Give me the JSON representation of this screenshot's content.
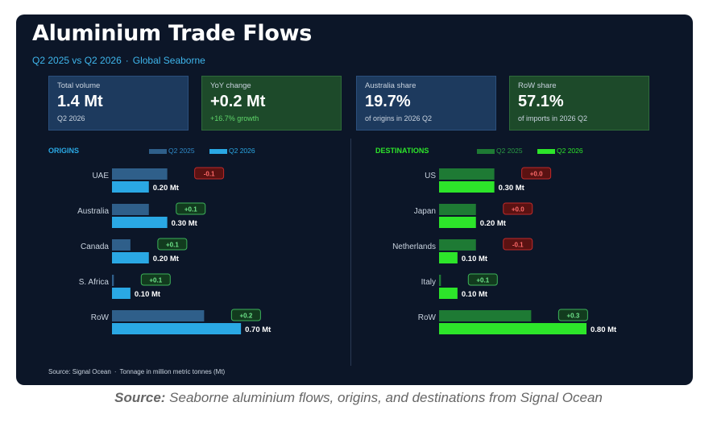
{
  "header": {
    "title": "Aluminium Trade Flows",
    "subtitle_period": "Q2 2025 vs Q2 2026",
    "subtitle_sep": "·",
    "subtitle_scope": "Global Seaborne"
  },
  "kpis": [
    {
      "label": "Total volume",
      "value": "1.4 Mt",
      "note": "Q2 2026",
      "style": "blue"
    },
    {
      "label": "YoY change",
      "value": "+0.2 Mt",
      "note": "+16.7% growth",
      "style": "green"
    },
    {
      "label": "Australia share",
      "value": "19.7%",
      "note": "of origins in 2026 Q2",
      "style": "blue"
    },
    {
      "label": "RoW share",
      "value": "57.1%",
      "note": "of imports in 2026 Q2",
      "style": "green"
    }
  ],
  "footer": {
    "source": "Source: Signal Ocean",
    "sep": "·",
    "unit_note": "Tonnage in million metric tonnes (Mt)"
  },
  "caption": {
    "prefix": "Source:",
    "text": "Seaborne aluminium flows, origins, and destinations from Signal Ocean"
  },
  "colors": {
    "origin_2025": "#2f5f8a",
    "origin_2026": "#2aa8e4",
    "dest_2025": "#1e7a34",
    "dest_2026": "#2de52a",
    "pos_badge_bg": "#123b1e",
    "pos_badge_border": "#3db35a",
    "pos_badge_text": "#6ee58a",
    "neg_badge_bg": "#5a1212",
    "neg_badge_border": "#c02a2a",
    "neg_badge_text": "#ff6a6a",
    "origin_title": "#2aa8e4",
    "dest_title": "#2de52a"
  },
  "chart_data": [
    {
      "type": "bar",
      "title": "ORIGINS",
      "orientation": "horizontal",
      "categories": [
        "UAE",
        "Australia",
        "Canada",
        "S. Africa",
        "RoW"
      ],
      "series": [
        {
          "name": "Q2 2025",
          "values": [
            0.3,
            0.2,
            0.1,
            0.01,
            0.5
          ]
        },
        {
          "name": "Q2 2026",
          "values": [
            0.2,
            0.3,
            0.2,
            0.1,
            0.7
          ]
        }
      ],
      "value_labels": [
        "0.20 Mt",
        "0.30 Mt",
        "0.20 Mt",
        "0.10 Mt",
        "0.70 Mt"
      ],
      "change_labels": [
        "-0.1",
        "+0.1",
        "+0.1",
        "+0.1",
        "+0.2"
      ],
      "change_sign": [
        "neg",
        "pos",
        "pos",
        "pos",
        "pos"
      ],
      "xlim": [
        0,
        0.8
      ],
      "legend_position": "top"
    },
    {
      "type": "bar",
      "title": "DESTINATIONS",
      "orientation": "horizontal",
      "categories": [
        "US",
        "Japan",
        "Netherlands",
        "Italy",
        "RoW"
      ],
      "series": [
        {
          "name": "Q2 2025",
          "values": [
            0.3,
            0.2,
            0.2,
            0.01,
            0.5
          ]
        },
        {
          "name": "Q2 2026",
          "values": [
            0.3,
            0.2,
            0.1,
            0.1,
            0.8
          ]
        }
      ],
      "value_labels": [
        "0.30 Mt",
        "0.20 Mt",
        "0.10 Mt",
        "0.10 Mt",
        "0.80 Mt"
      ],
      "change_labels": [
        "+0.0",
        "+0.0",
        "-0.1",
        "+0.1",
        "+0.3"
      ],
      "change_sign": [
        "neg",
        "neg",
        "neg",
        "pos",
        "pos"
      ],
      "xlim": [
        0,
        0.8
      ],
      "legend_position": "top"
    }
  ]
}
